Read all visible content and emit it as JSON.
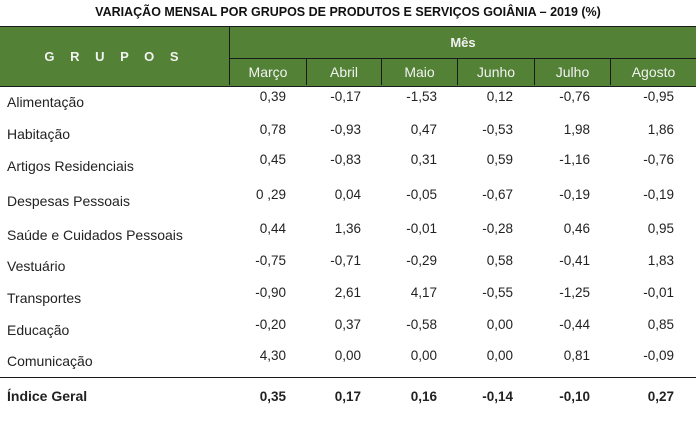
{
  "title": "VARIAÇÃO MENSAL POR GRUPOS DE PRODUTOS E SERVIÇOS GOIÂNIA – 2019 (%)",
  "header": {
    "groups_label": "G R U P O S",
    "month_label": "Mês",
    "months": [
      "Março",
      "Abril",
      "Maio",
      "Junho",
      "Julho",
      "Agosto"
    ]
  },
  "colors": {
    "header_bg": "#538135",
    "header_text": "#f2f2f2"
  },
  "rows": [
    {
      "label": "Alimentação",
      "values": [
        "0,39",
        "-0,17",
        "-1,53",
        "0,12",
        "-0,76",
        "-0,95"
      ]
    },
    {
      "label": "Habitação",
      "values": [
        "0,78",
        "-0,93",
        "0,47",
        "-0,53",
        "1,98",
        "1,86"
      ]
    },
    {
      "label": "Artigos Residenciais",
      "values": [
        "0,45",
        "-0,83",
        "0,31",
        "0,59",
        "-1,16",
        "-0,76"
      ]
    },
    {
      "label": "Despesas Pessoais",
      "values": [
        "0 ,29",
        "0,04",
        "-0,05",
        "-0,67",
        "-0,19",
        "-0,19"
      ]
    },
    {
      "label": "Saúde e Cuidados Pessoais",
      "values": [
        "0,44",
        "1,36",
        "-0,01",
        "-0,28",
        "0,46",
        "0,95"
      ]
    },
    {
      "label": "Vestuário",
      "values": [
        "-0,75",
        "-0,71",
        "-0,29",
        "0,58",
        "-0,41",
        "1,83"
      ]
    },
    {
      "label": "Transportes",
      "values": [
        "-0,90",
        "2,61",
        "4,17",
        "-0,55",
        "-1,25",
        "-0,01"
      ]
    },
    {
      "label": "Educação",
      "values": [
        "-0,20",
        "0,37",
        "-0,58",
        "0,00",
        "-0,44",
        "0,85"
      ]
    },
    {
      "label": "Comunicação",
      "values": [
        "4,30",
        "0,00",
        "0,00",
        "0,00",
        "0,81",
        "-0,09"
      ]
    }
  ],
  "total": {
    "label": "Índice Geral",
    "values": [
      "0,35",
      "0,17",
      "0,16",
      "-0,14",
      "-0,10",
      "0,27"
    ]
  }
}
